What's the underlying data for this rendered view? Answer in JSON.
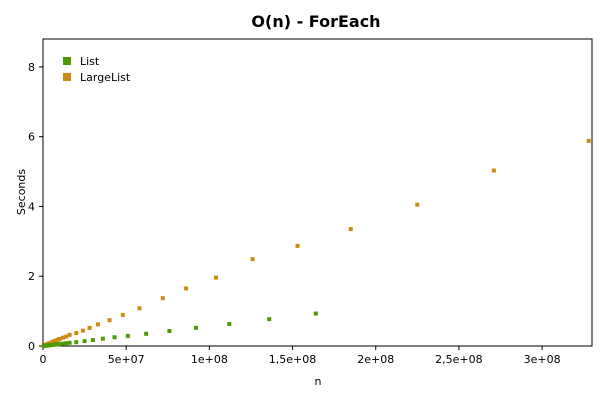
{
  "chart_data": {
    "type": "scatter",
    "title": "O(n) - ForEach",
    "xlabel": "n",
    "ylabel": "Seconds",
    "xlim": [
      0,
      330000000
    ],
    "ylim": [
      0,
      8.8
    ],
    "x_ticks": [
      0,
      50000000,
      100000000,
      150000000,
      200000000,
      250000000,
      300000000
    ],
    "x_tick_labels": [
      "0",
      "5e+07",
      "1e+08",
      "1,5e+08",
      "2e+08",
      "2,5e+08",
      "3e+08"
    ],
    "y_ticks": [
      0,
      2,
      4,
      6,
      8
    ],
    "y_tick_labels": [
      "0",
      "2",
      "4",
      "6",
      "8"
    ],
    "legend_position": "top-left",
    "grid": false,
    "series": [
      {
        "name": "List",
        "color": "#4e9a06",
        "points": [
          [
            500000,
            0.003
          ],
          [
            1000000,
            0.006
          ],
          [
            1500000,
            0.009
          ],
          [
            2000000,
            0.012
          ],
          [
            2500000,
            0.014
          ],
          [
            3000000,
            0.017
          ],
          [
            3500000,
            0.02
          ],
          [
            4000000,
            0.023
          ],
          [
            5000000,
            0.028
          ],
          [
            6000000,
            0.034
          ],
          [
            7000000,
            0.04
          ],
          [
            8000000,
            0.045
          ],
          [
            9000000,
            0.05
          ],
          [
            10000000,
            0.056
          ],
          [
            12000000,
            0.068
          ],
          [
            14000000,
            0.08
          ],
          [
            16000000,
            0.092
          ],
          [
            20000000,
            0.11
          ],
          [
            25000000,
            0.14
          ],
          [
            30000000,
            0.17
          ],
          [
            36000000,
            0.21
          ],
          [
            43000000,
            0.25
          ],
          [
            51000000,
            0.29
          ],
          [
            62000000,
            0.35
          ],
          [
            76000000,
            0.43
          ],
          [
            92000000,
            0.52
          ],
          [
            112000000,
            0.63
          ],
          [
            136000000,
            0.77
          ],
          [
            164000000,
            0.93
          ]
        ]
      },
      {
        "name": "LargeList",
        "color": "#cc8a12",
        "points": [
          [
            500000,
            0.01
          ],
          [
            1000000,
            0.02
          ],
          [
            1500000,
            0.03
          ],
          [
            2000000,
            0.04
          ],
          [
            2500000,
            0.05
          ],
          [
            3000000,
            0.06
          ],
          [
            3500000,
            0.07
          ],
          [
            4000000,
            0.08
          ],
          [
            5000000,
            0.1
          ],
          [
            6000000,
            0.12
          ],
          [
            7000000,
            0.14
          ],
          [
            8000000,
            0.16
          ],
          [
            9000000,
            0.18
          ],
          [
            10000000,
            0.2
          ],
          [
            12000000,
            0.24
          ],
          [
            14000000,
            0.27
          ],
          [
            16000000,
            0.32
          ],
          [
            20000000,
            0.37
          ],
          [
            24000000,
            0.44
          ],
          [
            28000000,
            0.52
          ],
          [
            33000000,
            0.62
          ],
          [
            40000000,
            0.74
          ],
          [
            48000000,
            0.89
          ],
          [
            58000000,
            1.08
          ],
          [
            72000000,
            1.37
          ],
          [
            86000000,
            1.65
          ],
          [
            104000000,
            1.96
          ],
          [
            126000000,
            2.49
          ],
          [
            153000000,
            2.87
          ],
          [
            185000000,
            3.35
          ],
          [
            225000000,
            4.05
          ],
          [
            271000000,
            5.03
          ],
          [
            328000000,
            5.88
          ]
        ]
      }
    ]
  }
}
